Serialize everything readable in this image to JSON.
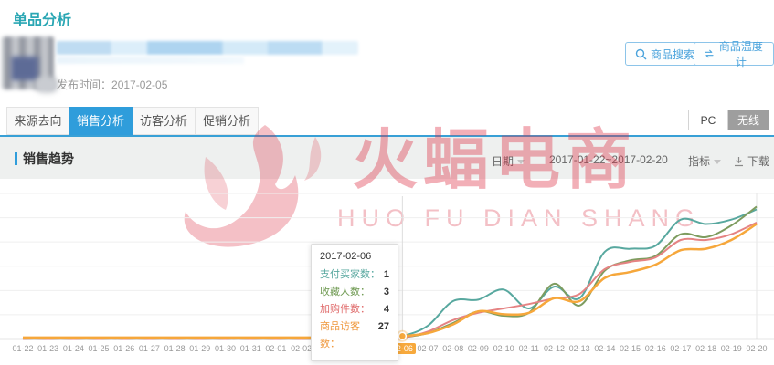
{
  "page": {
    "title": "单品分析"
  },
  "header": {
    "product": {
      "publish_label": "发布时间：",
      "publish_date": "2017-02-05"
    },
    "buttons": [
      {
        "label": "商品搜索",
        "icon": "search-icon"
      },
      {
        "label": "商品温度计",
        "icon": "swap-icon"
      }
    ]
  },
  "tabs": [
    {
      "label": "来源去向",
      "active": false
    },
    {
      "label": "销售分析",
      "active": true
    },
    {
      "label": "访客分析",
      "active": false
    },
    {
      "label": "促销分析",
      "active": false
    }
  ],
  "device_toggle": [
    {
      "label": "PC",
      "active": false
    },
    {
      "label": "无线",
      "active": true
    }
  ],
  "section": {
    "title": "销售趋势",
    "date_label": "日期",
    "date_range": "2017-01-22~2017-02-20",
    "metric_label": "指标",
    "download_label": "下载"
  },
  "watermark": {
    "text": "火蝠电商",
    "subtext": "HUO FU DIAN SHANG"
  },
  "tooltip": {
    "title": "2017-02-06",
    "rows": [
      {
        "label": "支付买家数",
        "value": "1",
        "color": "#58a89f"
      },
      {
        "label": "收藏人数",
        "value": "3",
        "color": "#6f9a52"
      },
      {
        "label": "加购件数",
        "value": "4",
        "color": "#e06c6c"
      },
      {
        "label": "商品访客数",
        "value": "27",
        "color": "#ef973b"
      }
    ]
  },
  "chart_data": {
    "type": "line",
    "title": "销售趋势",
    "xlabel": "",
    "ylabel": "",
    "x": [
      "01-22",
      "01-23",
      "01-24",
      "01-25",
      "01-26",
      "01-27",
      "01-28",
      "01-29",
      "01-30",
      "01-31",
      "02-01",
      "02-02",
      "02-03",
      "02-04",
      "02-05",
      "02-06",
      "02-07",
      "02-08",
      "02-09",
      "02-10",
      "02-11",
      "02-12",
      "02-13",
      "02-14",
      "02-15",
      "02-16",
      "02-17",
      "02-18",
      "02-19",
      "02-20"
    ],
    "highlight_index": 15,
    "highlight_date": "02-06",
    "y_axis_labels_visible": false,
    "ylim": [
      0,
      100
    ],
    "grid": true,
    "legend_position": "none",
    "series": [
      {
        "name": "支付买家数",
        "color": "#58a89f",
        "values": [
          0,
          0,
          0,
          0,
          0,
          0,
          0,
          0,
          0,
          0,
          0,
          0,
          0,
          0,
          0,
          2,
          9,
          26,
          27,
          34,
          21,
          36,
          28,
          60,
          62,
          64,
          82,
          79,
          82,
          89
        ]
      },
      {
        "name": "收藏人数",
        "color": "#7e9c5f",
        "values": [
          0,
          0,
          0,
          0,
          0,
          0,
          0,
          0,
          0,
          0,
          0,
          0,
          0,
          0,
          0,
          1,
          4,
          11,
          19,
          16,
          18,
          38,
          23,
          47,
          54,
          57,
          72,
          70,
          78,
          91
        ]
      },
      {
        "name": "加购件数",
        "color": "#e58383",
        "values": [
          0,
          0,
          0,
          0,
          0,
          0,
          0,
          0,
          0,
          0,
          0,
          0,
          0,
          0,
          0,
          1,
          5,
          13,
          18,
          21,
          24,
          28,
          31,
          48,
          53,
          56,
          68,
          68,
          72,
          80
        ]
      },
      {
        "name": "商品访客数",
        "color": "#f6a73b",
        "values": [
          1,
          1,
          1,
          1,
          1,
          1,
          1,
          1,
          1,
          1,
          1,
          1,
          1,
          1,
          1,
          2,
          4,
          10,
          19,
          17,
          18,
          28,
          26,
          42,
          46,
          51,
          61,
          62,
          68,
          79
        ]
      }
    ]
  }
}
